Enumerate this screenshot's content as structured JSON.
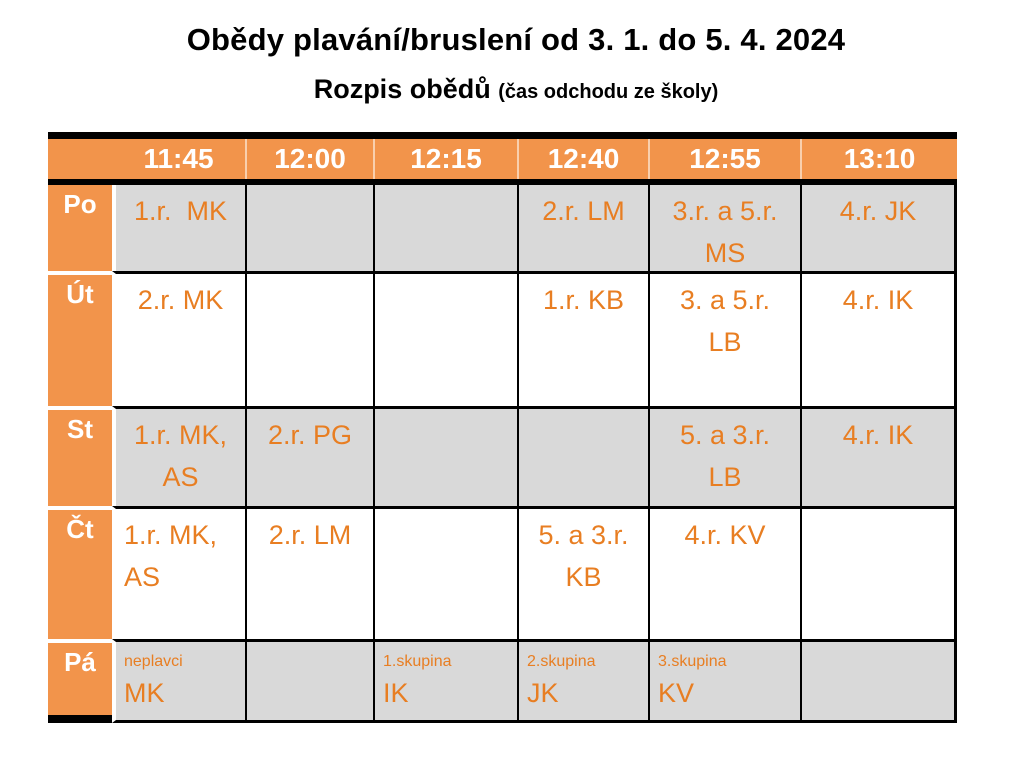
{
  "title": "Obědy plavání/bruslení od 3. 1. do 5. 4. 2024",
  "subtitle": "Rozpis obědů",
  "subtitle_note": "(čas odchodu ze školy)",
  "colors": {
    "accent_orange_fill": "#F2944B",
    "cell_text_orange": "#E87E22",
    "cell_gray": "#D9D9D9",
    "border_black": "#000000",
    "header_text": "#FFFFFF"
  },
  "table": {
    "times": [
      "11:45",
      "12:00",
      "12:15",
      "12:40",
      "12:55",
      "13:10"
    ],
    "rows": [
      {
        "day": "Po",
        "variant": "gray",
        "cells": [
          {
            "lines": [
              "1.r.  MK"
            ]
          },
          {
            "lines": []
          },
          {
            "lines": []
          },
          {
            "lines": [
              "2.r. LM"
            ]
          },
          {
            "lines": [
              "3.r. a 5.r.",
              "MS"
            ]
          },
          {
            "lines": [
              "4.r. JK"
            ]
          }
        ]
      },
      {
        "day": "Út",
        "variant": "white",
        "cells": [
          {
            "lines": [
              "2.r. MK"
            ]
          },
          {
            "lines": []
          },
          {
            "lines": []
          },
          {
            "lines": [
              "1.r. KB"
            ]
          },
          {
            "lines": [
              "3. a 5.r.",
              "LB"
            ]
          },
          {
            "lines": [
              "4.r. IK"
            ]
          }
        ]
      },
      {
        "day": "St",
        "variant": "gray",
        "cells": [
          {
            "lines": [
              "1.r. MK,",
              "AS"
            ]
          },
          {
            "lines": [
              "2.r. PG"
            ]
          },
          {
            "lines": []
          },
          {
            "lines": []
          },
          {
            "lines": [
              "5. a 3.r.",
              "LB"
            ]
          },
          {
            "lines": [
              "4.r. IK"
            ]
          }
        ]
      },
      {
        "day": "Čt",
        "variant": "white",
        "cells": [
          {
            "lines": [
              "1.r. MK,",
              "AS"
            ],
            "align": "left"
          },
          {
            "lines": [
              "2.r. LM"
            ]
          },
          {
            "lines": []
          },
          {
            "lines": [
              "5. a 3.r.",
              "KB"
            ]
          },
          {
            "lines": [
              "4.r. KV"
            ]
          },
          {
            "lines": []
          }
        ]
      },
      {
        "day": "Pá",
        "variant": "gray",
        "cells": [
          {
            "small": "neplavci",
            "lines": [
              "MK"
            ],
            "align": "left"
          },
          {
            "lines": []
          },
          {
            "small": "1.skupina",
            "lines": [
              "IK"
            ],
            "align": "left"
          },
          {
            "small": "2.skupina",
            "lines": [
              "JK"
            ],
            "align": "left"
          },
          {
            "small": "3.skupina",
            "lines": [
              "KV"
            ],
            "align": "left"
          },
          {
            "lines": []
          }
        ]
      }
    ]
  }
}
